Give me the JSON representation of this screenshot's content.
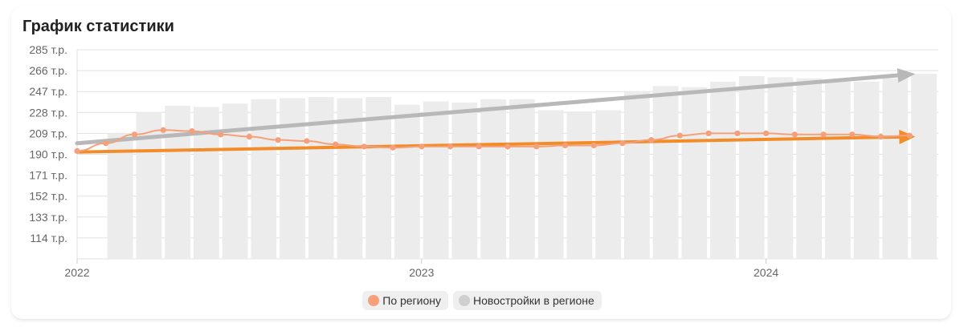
{
  "title": "График статистики",
  "legend": [
    {
      "label": "По региону",
      "color": "#f5a07a"
    },
    {
      "label": "Новостройки в регионе",
      "color": "#cfcfcf"
    }
  ],
  "colors": {
    "region_line": "#f5a07a",
    "bars": "#ececec",
    "trend_gray": "#b8b8b8",
    "trend_orange": "#f28c28",
    "grid": "#e0e0e0"
  },
  "chart_data": {
    "type": "bar+line",
    "y_ticks": [
      "285 т.р.",
      "266 т.р.",
      "247 т.р.",
      "228 т.р.",
      "209 т.р.",
      "190 т.р.",
      "171 т.р.",
      "152 т.р.",
      "133 т.р.",
      "114 т.р."
    ],
    "y_tick_values": [
      285,
      266,
      247,
      228,
      209,
      190,
      171,
      152,
      133,
      114
    ],
    "ylim": [
      95,
      285
    ],
    "x_labels": [
      "2022",
      "2023",
      "2024"
    ],
    "x_label_positions": [
      0,
      12,
      24
    ],
    "x_count": 30,
    "grid": true,
    "legend_position": "bottom",
    "series": [
      {
        "name": "Новостройки в регионе",
        "kind": "bar",
        "values": [
          null,
          209,
          228,
          234,
          233,
          236,
          240,
          241,
          242,
          241,
          242,
          235,
          238,
          237,
          240,
          240,
          230,
          229,
          230,
          247,
          252,
          251,
          256,
          261,
          260,
          259,
          256,
          256,
          259,
          263
        ]
      },
      {
        "name": "По региону",
        "kind": "line",
        "values": [
          193,
          200,
          208,
          212,
          211,
          208,
          206,
          203,
          202,
          199,
          197,
          196,
          197,
          197,
          197,
          197,
          197,
          198,
          198,
          200,
          203,
          207,
          209,
          209,
          209,
          208,
          208,
          208,
          206,
          207
        ]
      }
    ],
    "trend_lines": [
      {
        "series": "Новостройки в регионе",
        "start": [
          0,
          200
        ],
        "end": [
          29.2,
          263
        ]
      },
      {
        "series": "По региону",
        "start": [
          0,
          192
        ],
        "end": [
          29.2,
          206
        ]
      }
    ]
  }
}
